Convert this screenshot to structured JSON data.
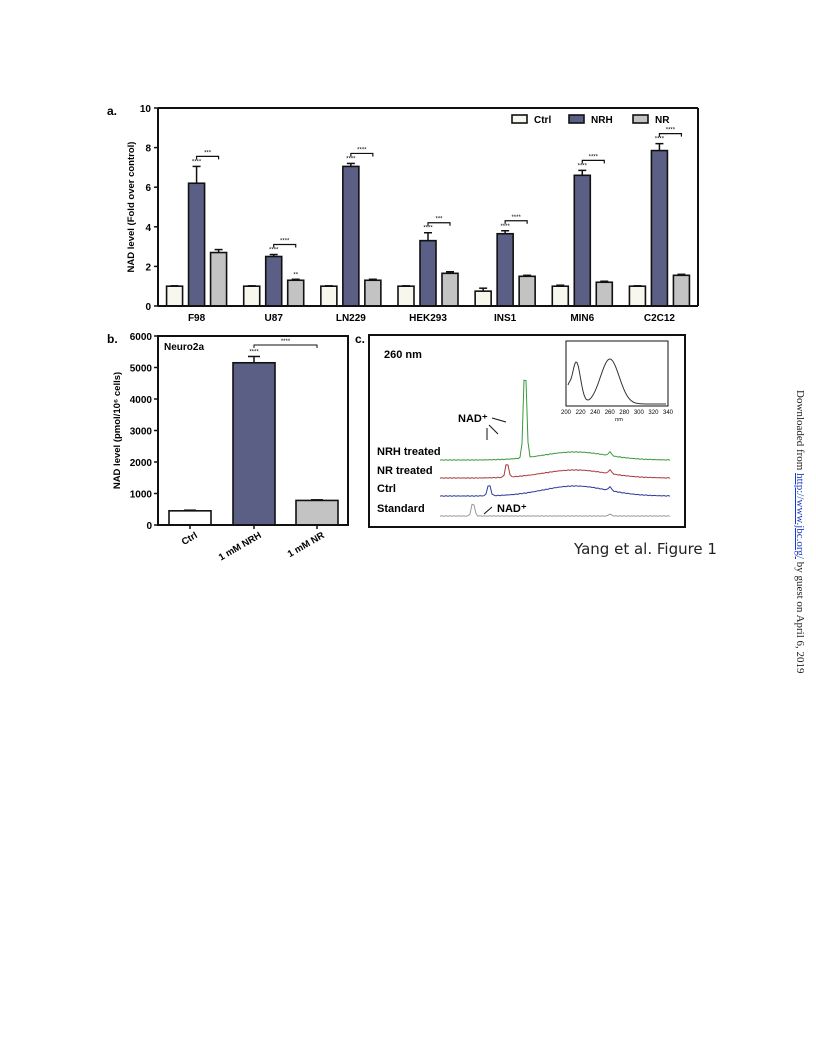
{
  "figure_caption": "Yang et al. Figure 1",
  "sidebar": {
    "prefix": "Downloaded from",
    "link": "http://www.jbc.org/",
    "suffix": "by guest on April 6, 2019"
  },
  "colors": {
    "Ctrl": "#f7f7ee",
    "NRH": "#5b5f86",
    "NR": "#c3c3c3"
  },
  "panel_a": {
    "panel_label": "a.",
    "legend": [
      "Ctrl",
      "NRH",
      "NR"
    ]
  },
  "panel_b": {
    "panel_label": "b.",
    "inset_label": "Neuro2a"
  },
  "panel_c": {
    "panel_label": "c.",
    "wavelength_label": "260 nm",
    "trace_labels": [
      "NRH treated",
      "NR treated",
      "Ctrl",
      "Standard"
    ],
    "nad_label_upper": "NAD⁺",
    "nad_label_lower": "NAD⁺",
    "inset_x_ticks": [
      "200",
      "220",
      "240",
      "260",
      "280",
      "300",
      "320",
      "340"
    ],
    "inset_x_label": "nm",
    "trace_colors": {
      "NRH treated": "#3a9a3a",
      "NR treated": "#a83a3a",
      "Ctrl": "#2a3a9a",
      "Standard": "#999999"
    }
  },
  "chart_data": [
    {
      "type": "bar",
      "categories": [
        "F98",
        "U87",
        "LN229",
        "HEK293",
        "INS1",
        "MIN6",
        "C2C12"
      ],
      "series": [
        {
          "name": "Ctrl",
          "values": [
            1.0,
            1.0,
            1.0,
            1.0,
            0.75,
            1.0,
            1.0
          ],
          "errors": [
            0.02,
            0.02,
            0.02,
            0.02,
            0.15,
            0.05,
            0.02
          ]
        },
        {
          "name": "NRH",
          "values": [
            6.2,
            2.5,
            7.05,
            3.3,
            3.65,
            6.6,
            7.85
          ],
          "errors": [
            0.85,
            0.1,
            0.15,
            0.4,
            0.15,
            0.25,
            0.35
          ]
        },
        {
          "name": "NR",
          "values": [
            2.7,
            1.3,
            1.3,
            1.65,
            1.5,
            1.2,
            1.55
          ],
          "errors": [
            0.15,
            0.05,
            0.05,
            0.08,
            0.05,
            0.05,
            0.05
          ]
        }
      ],
      "significance": [
        {
          "category": "F98",
          "nrh": "****",
          "bracket": "***"
        },
        {
          "category": "U87",
          "nrh": "****",
          "bracket": "****",
          "nr": "**"
        },
        {
          "category": "LN229",
          "nrh": "****",
          "bracket": "****"
        },
        {
          "category": "HEK293",
          "nrh": "****",
          "bracket": "***"
        },
        {
          "category": "INS1",
          "nrh": "****",
          "bracket": "****"
        },
        {
          "category": "MIN6",
          "nrh": "****",
          "bracket": "****"
        },
        {
          "category": "C2C12",
          "nrh": "****",
          "bracket": "****"
        }
      ],
      "ylabel": "NAD level (Fold over control)",
      "ylim": [
        0,
        10
      ],
      "yticks": [
        0,
        2,
        4,
        6,
        8,
        10
      ],
      "legend_position": "top-right"
    },
    {
      "type": "bar",
      "categories": [
        "Ctrl",
        "1 mM NRH",
        "1 mM NR"
      ],
      "values": [
        450,
        5150,
        780
      ],
      "errors": [
        20,
        200,
        20
      ],
      "significance": {
        "bar": "1 mM NRH",
        "label": "****",
        "bracket": "****"
      },
      "ylabel": "NAD level (pmol/10⁶ cells)",
      "ylim": [
        0,
        6000
      ],
      "yticks": [
        0,
        1000,
        2000,
        3000,
        4000,
        5000,
        6000
      ]
    }
  ]
}
